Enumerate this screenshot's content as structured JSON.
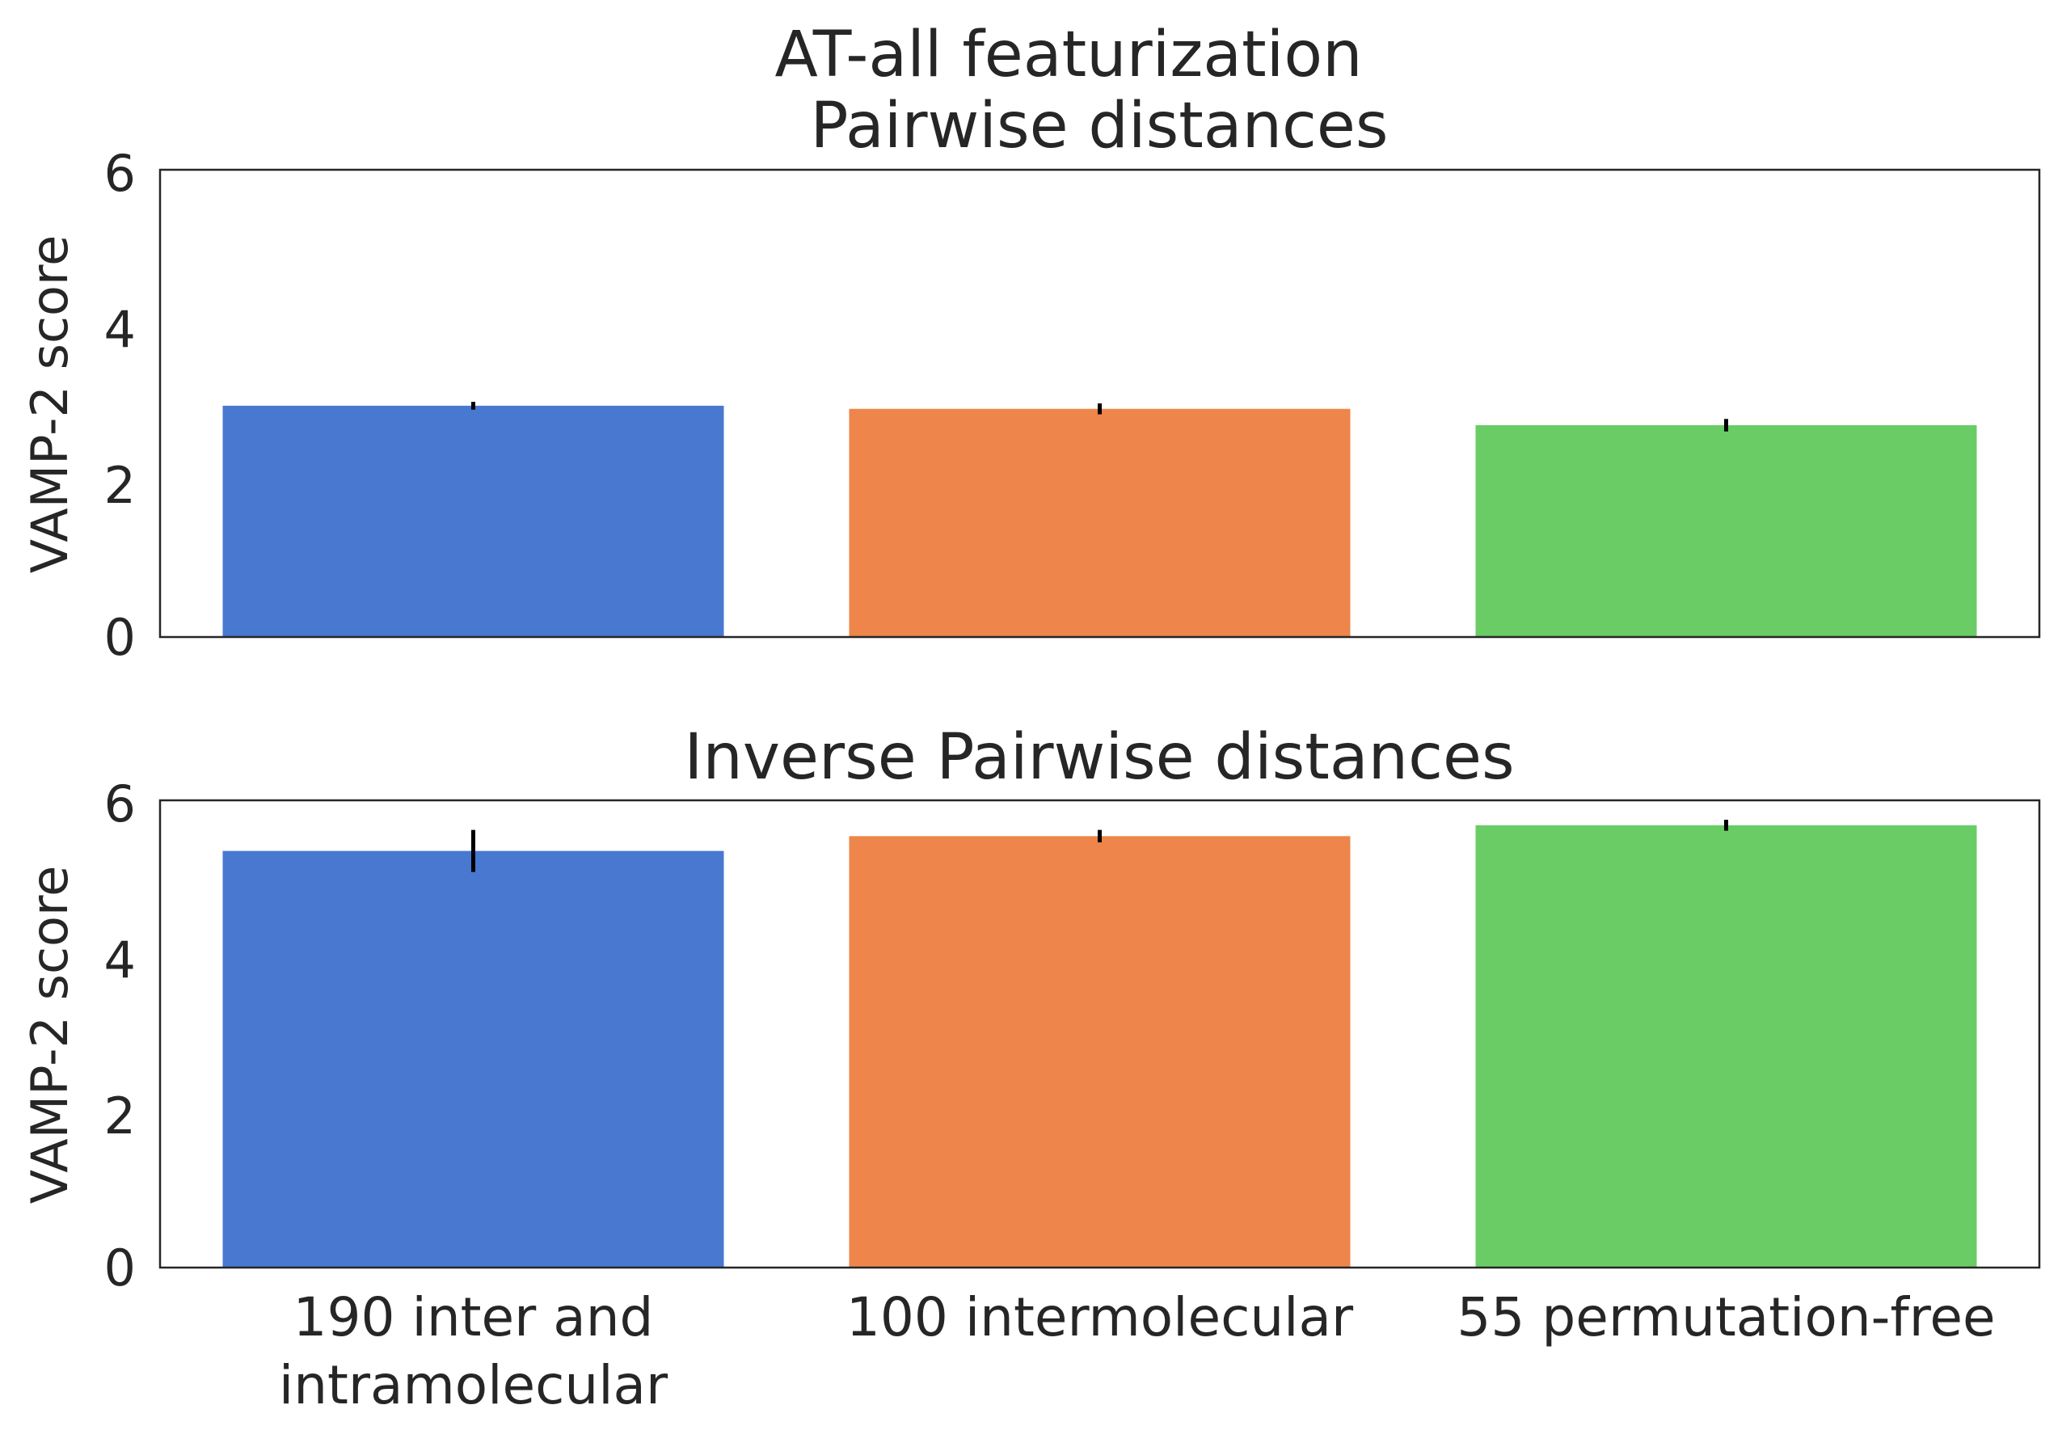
{
  "chart_data": {
    "type": "bar",
    "suptitle": "AT-all featurization",
    "categories": [
      "190 inter and\nintramolecular",
      "100 intermolecular",
      "55 permutation-free"
    ],
    "colors": [
      "#4878d0",
      "#ee854a",
      "#6acc64"
    ],
    "panels": [
      {
        "title": "Pairwise distances",
        "ylabel": "VAMP-2 score",
        "ylim": [
          0,
          6
        ],
        "yticks": [
          "0",
          "2",
          "4",
          "6"
        ],
        "values": [
          2.97,
          2.93,
          2.72
        ],
        "errors": [
          0.05,
          0.07,
          0.08
        ]
      },
      {
        "title": "Inverse Pairwise distances",
        "ylabel": "VAMP-2 score",
        "ylim": [
          0,
          6
        ],
        "yticks": [
          "0",
          "2",
          "4",
          "6"
        ],
        "values": [
          5.35,
          5.54,
          5.68
        ],
        "errors": [
          0.27,
          0.08,
          0.07
        ]
      }
    ],
    "grid": false
  }
}
